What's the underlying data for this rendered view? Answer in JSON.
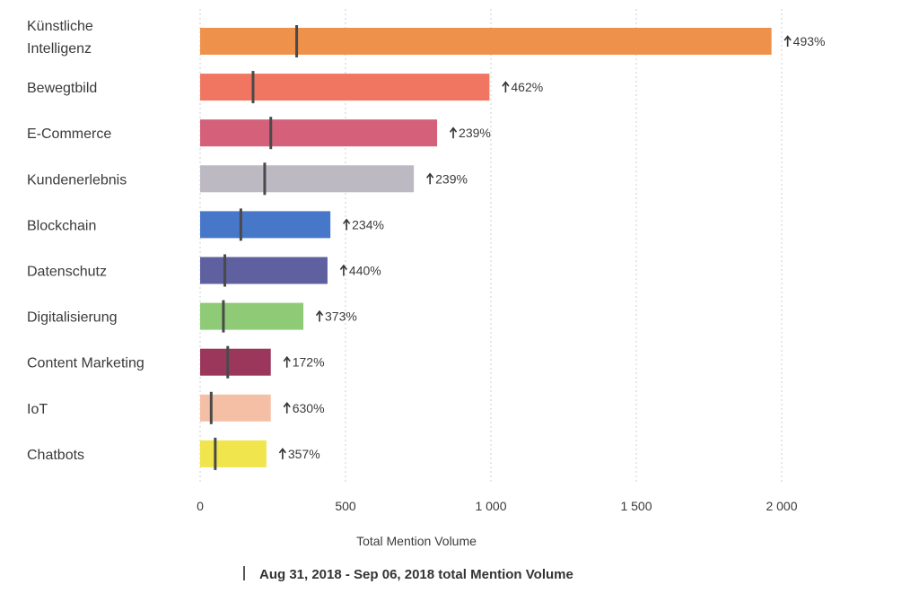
{
  "chart_data": {
    "type": "bar",
    "orientation": "horizontal",
    "categories": [
      "Künstliche Intelligenz",
      "Bewegtbild",
      "E-Commerce",
      "Kundenerlebnis",
      "Blockchain",
      "Datenschutz",
      "Digitalisierung",
      "Content Marketing",
      "IoT",
      "Chatbots"
    ],
    "series": [
      {
        "values": [
          1965,
          995,
          815,
          735,
          448,
          438,
          355,
          243,
          243,
          228
        ],
        "colors": [
          "#EE914A",
          "#F07662",
          "#D4607A",
          "#BCB9C2",
          "#4677C9",
          "#5E60A0",
          "#8FCB76",
          "#9C375C",
          "#F5BFA6",
          "#F0E54C"
        ],
        "change_labels": [
          "493%",
          "462%",
          "239%",
          "239%",
          "234%",
          "440%",
          "373%",
          "172%",
          "630%",
          "357%"
        ]
      },
      {
        "name": "Aug 31, 2018 - Sep 06, 2018 total Mention Volume",
        "marker": "tick",
        "values": [
          332,
          182,
          243,
          222,
          140,
          85,
          80,
          95,
          38,
          52
        ]
      }
    ],
    "xlabel": "Total Mention Volume",
    "xlim": [
      0,
      2000
    ],
    "xticks": [
      0,
      500,
      1000,
      1500,
      2000
    ],
    "xtick_labels": [
      "0",
      "500",
      "1 000",
      "1 500",
      "2 000"
    ],
    "grid": true,
    "legend_position": "bottom",
    "change_arrow": "up"
  }
}
